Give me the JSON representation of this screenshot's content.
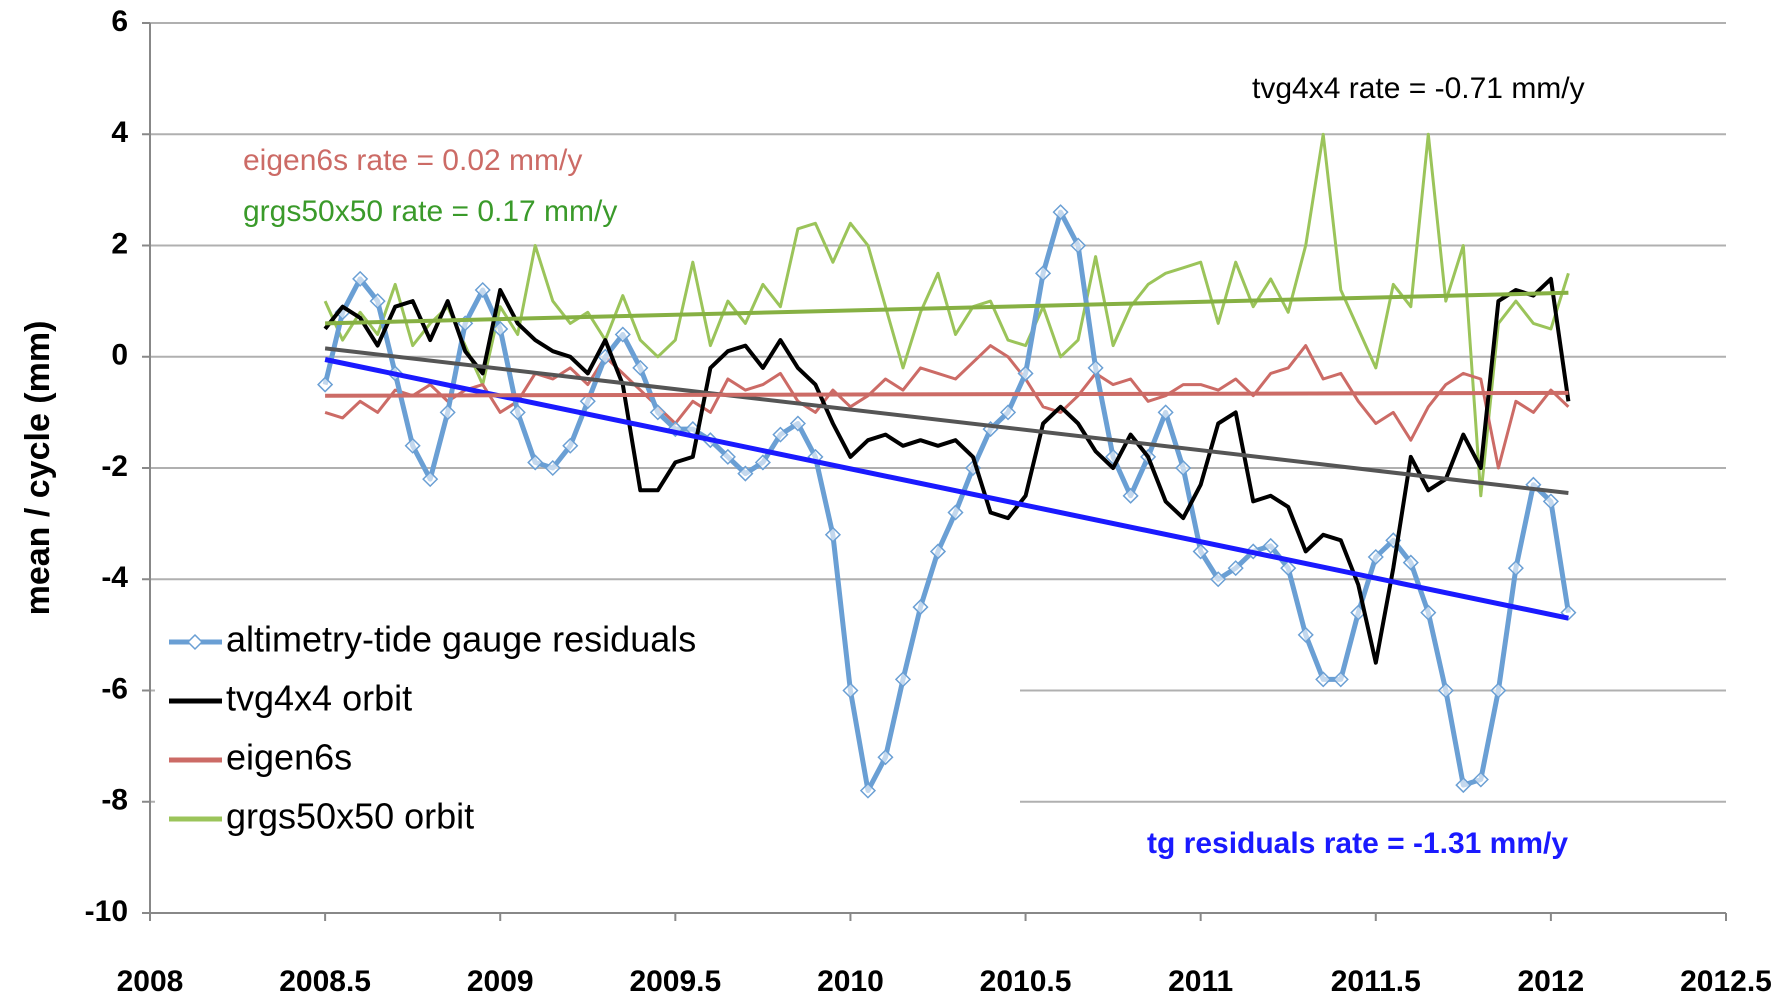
{
  "chart_data": {
    "type": "line",
    "y_label": "mean / cycle (mm)",
    "xlim": [
      2008,
      2012.5
    ],
    "xticks": [
      2008,
      2008.5,
      2009,
      2009.5,
      2010,
      2010.5,
      2011,
      2011.5,
      2012,
      2012.5
    ],
    "ylim": [
      -10,
      6
    ],
    "yticks": [
      -10,
      -8,
      -6,
      -4,
      -2,
      0,
      2,
      4,
      6
    ],
    "grid": true,
    "legend": "lower left",
    "x": [
      2008.5,
      2008.55,
      2008.6,
      2008.65,
      2008.7,
      2008.75,
      2008.8,
      2008.85,
      2008.9,
      2008.95,
      2009,
      2009.05,
      2009.1,
      2009.15,
      2009.2,
      2009.25,
      2009.3,
      2009.35,
      2009.4,
      2009.45,
      2009.5,
      2009.55,
      2009.6,
      2009.65,
      2009.7,
      2009.75,
      2009.8,
      2009.85,
      2009.9,
      2009.95,
      2010,
      2010.05,
      2010.1,
      2010.15,
      2010.2,
      2010.25,
      2010.3,
      2010.35,
      2010.4,
      2010.45,
      2010.5,
      2010.55,
      2010.6,
      2010.65,
      2010.7,
      2010.75,
      2010.8,
      2010.85,
      2010.9,
      2010.95,
      2011,
      2011.05,
      2011.1,
      2011.15,
      2011.2,
      2011.25,
      2011.3,
      2011.35,
      2011.4,
      2011.45,
      2011.5,
      2011.55,
      2011.6,
      2011.65,
      2011.7,
      2011.75,
      2011.8,
      2011.85,
      2011.9,
      2011.95,
      2012,
      2012.05
    ],
    "series": [
      {
        "name": "altimetry-tide gauge residuals",
        "color": "#6a9fd4",
        "marker": "diamond",
        "values": [
          -0.5,
          0.8,
          1.4,
          1.0,
          -0.3,
          -1.6,
          -2.2,
          -1.0,
          0.6,
          1.2,
          0.5,
          -1.0,
          -1.9,
          -2.0,
          -1.6,
          -0.8,
          0.0,
          0.4,
          -0.2,
          -1.0,
          -1.3,
          -1.3,
          -1.5,
          -1.8,
          -2.1,
          -1.9,
          -1.4,
          -1.2,
          -1.8,
          -3.2,
          -6.0,
          -7.8,
          -7.2,
          -5.8,
          -4.5,
          -3.5,
          -2.8,
          -2.0,
          -1.3,
          -1.0,
          -0.3,
          1.5,
          2.6,
          2.0,
          -0.2,
          -1.8,
          -2.5,
          -1.8,
          -1.0,
          -2.0,
          -3.5,
          -4.0,
          -3.8,
          -3.5,
          -3.4,
          -3.8,
          -5.0,
          -5.8,
          -5.8,
          -4.6,
          -3.6,
          -3.3,
          -3.7,
          -4.6,
          -6.0,
          -7.7,
          -7.6,
          -6.0,
          -3.8,
          -2.3,
          -2.6,
          -4.6
        ]
      },
      {
        "name": "tvg4x4 orbit",
        "color": "#000000",
        "values": [
          0.5,
          0.9,
          0.7,
          0.2,
          0.9,
          1.0,
          0.3,
          1.0,
          0.1,
          -0.3,
          1.2,
          0.6,
          0.3,
          0.1,
          0.0,
          -0.3,
          0.3,
          -0.5,
          -2.4,
          -2.4,
          -1.9,
          -1.8,
          -0.2,
          0.1,
          0.2,
          -0.2,
          0.3,
          -0.2,
          -0.5,
          -1.2,
          -1.8,
          -1.5,
          -1.4,
          -1.6,
          -1.5,
          -1.6,
          -1.5,
          -1.8,
          -2.8,
          -2.9,
          -2.5,
          -1.2,
          -0.9,
          -1.2,
          -1.7,
          -2.0,
          -1.4,
          -1.8,
          -2.6,
          -2.9,
          -2.3,
          -1.2,
          -1.0,
          -2.6,
          -2.5,
          -2.7,
          -3.5,
          -3.2,
          -3.3,
          -4.1,
          -5.5,
          -3.8,
          -1.8,
          -2.4,
          -2.2,
          -1.4,
          -2.0,
          1.0,
          1.2,
          1.1,
          1.4,
          -0.8
        ]
      },
      {
        "name": "eigen6s",
        "color": "#cc6b66",
        "values": [
          -1.0,
          -1.1,
          -0.8,
          -1.0,
          -0.6,
          -0.7,
          -0.5,
          -0.8,
          -0.6,
          -0.5,
          -1.0,
          -0.8,
          -0.3,
          -0.4,
          -0.2,
          -0.5,
          0.0,
          -0.3,
          -0.6,
          -0.9,
          -1.2,
          -0.8,
          -1.0,
          -0.4,
          -0.6,
          -0.5,
          -0.3,
          -0.8,
          -1.0,
          -0.6,
          -0.9,
          -0.7,
          -0.4,
          -0.6,
          -0.2,
          -0.3,
          -0.4,
          -0.1,
          0.2,
          0.0,
          -0.4,
          -0.9,
          -1.0,
          -0.7,
          -0.3,
          -0.5,
          -0.4,
          -0.8,
          -0.7,
          -0.5,
          -0.5,
          -0.6,
          -0.4,
          -0.7,
          -0.3,
          -0.2,
          0.2,
          -0.4,
          -0.3,
          -0.8,
          -1.2,
          -1.0,
          -1.5,
          -0.9,
          -0.5,
          -0.3,
          -0.4,
          -2.0,
          -0.8,
          -1.0,
          -0.6,
          -0.9
        ]
      },
      {
        "name": "grgs50x50 orbit",
        "color": "#9bc45a",
        "values": [
          1.0,
          0.3,
          0.8,
          0.4,
          1.3,
          0.2,
          0.6,
          0.9,
          0.2,
          -0.5,
          0.9,
          0.4,
          2.0,
          1.0,
          0.6,
          0.8,
          0.3,
          1.1,
          0.3,
          0.0,
          0.3,
          1.7,
          0.2,
          1.0,
          0.6,
          1.3,
          0.9,
          2.3,
          2.4,
          1.7,
          2.4,
          2.0,
          0.9,
          -0.2,
          0.8,
          1.5,
          0.4,
          0.9,
          1.0,
          0.3,
          0.2,
          0.9,
          0.0,
          0.3,
          1.8,
          0.2,
          0.9,
          1.3,
          1.5,
          1.6,
          1.7,
          0.6,
          1.7,
          0.9,
          1.4,
          0.8,
          2.0,
          4.0,
          1.2,
          0.5,
          -0.2,
          1.3,
          0.9,
          4.0,
          1.0,
          2.0,
          -2.5,
          0.6,
          1.0,
          0.6,
          0.5,
          1.5
        ]
      }
    ],
    "trend_lines": [
      {
        "color": "#1a1aff",
        "x": [
          2008.5,
          2012.05
        ],
        "values": [
          -0.05,
          -4.7
        ]
      },
      {
        "color": "#555555",
        "x": [
          2008.5,
          2012.05
        ],
        "values": [
          0.15,
          -2.45
        ]
      },
      {
        "color": "#cc6b66",
        "x": [
          2008.5,
          2012.05
        ],
        "values": [
          -0.7,
          -0.65
        ]
      },
      {
        "color": "#86b043",
        "x": [
          2008.5,
          2012.05
        ],
        "values": [
          0.6,
          1.15
        ]
      }
    ],
    "annotations": [
      {
        "text": "tvg4x4 rate = -0.71 mm/y",
        "color": "#000000"
      },
      {
        "text": "eigen6s rate = 0.02 mm/y",
        "color": "#cc6b66"
      },
      {
        "text": "grgs50x50 rate = 0.17 mm/y",
        "color": "#3a9a2a"
      },
      {
        "text": "tg residuals rate = -1.31 mm/y",
        "color": "#1a1aff",
        "bold": true
      }
    ]
  }
}
